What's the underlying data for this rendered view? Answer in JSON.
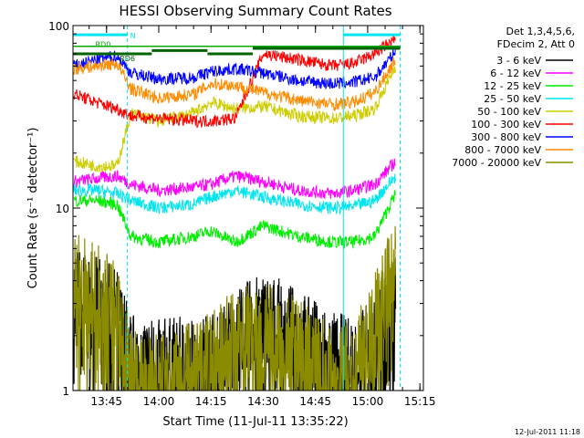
{
  "chart_data": {
    "type": "line",
    "title": "HESSI Observing Summary Count Rates",
    "xlabel": "Start Time (11-Jul-11 13:35:22)",
    "ylabel": "Count Rate (s⁻¹ detector⁻¹)",
    "yscale": "log",
    "ylim": [
      1,
      100
    ],
    "xlim": [
      "13:35:22",
      "15:16"
    ],
    "x_ticks": [
      "13:45",
      "14:00",
      "14:15",
      "14:30",
      "14:45",
      "15:00",
      "15:15"
    ],
    "y_ticks": [
      "1",
      "10",
      "100"
    ],
    "legend_header": [
      "Det 1,3,4,5,6,",
      "FDecim 2, Att 0"
    ],
    "legend_placement": "right",
    "timestamp": "12-Jul-2011 11:18",
    "flags": [
      {
        "name": "N",
        "color": "#00e5ee",
        "value": 89
      },
      {
        "name": "RD0",
        "color": "#00aa00",
        "value": 77
      },
      {
        "name": "RD6",
        "color": "#006400",
        "value": 70
      }
    ],
    "vertical_lines": [
      {
        "time": "13:35:22",
        "style": "solid",
        "color": "#00e5ee"
      },
      {
        "time": "13:51:00",
        "style": "dashed",
        "color": "#00e5ee"
      },
      {
        "time": "14:53:00",
        "style": "solid",
        "color": "#00e5ee"
      },
      {
        "time": "15:09:20",
        "style": "dashed",
        "color": "#00e5ee"
      }
    ],
    "series": [
      {
        "name": "3 - 6 keV",
        "color": "#000000",
        "x": [
          "13:36",
          "13:42",
          "13:48",
          "13:52",
          "14:00",
          "14:10",
          "14:15",
          "14:22",
          "14:30",
          "14:40",
          "14:50",
          "14:56",
          "15:02",
          "15:08"
        ],
        "values": [
          3.5,
          3.0,
          2.6,
          1.5,
          1.4,
          1.4,
          1.5,
          2.0,
          2.5,
          2.0,
          1.5,
          1.4,
          1.8,
          4.0
        ]
      },
      {
        "name": "6 - 12 keV",
        "color": "#ff00ff",
        "x": [
          "13:36",
          "13:42",
          "13:48",
          "13:52",
          "14:00",
          "14:10",
          "14:15",
          "14:22",
          "14:30",
          "14:40",
          "14:50",
          "14:56",
          "15:02",
          "15:08"
        ],
        "values": [
          14,
          14.5,
          15,
          13.5,
          12.5,
          13,
          13.5,
          15,
          14,
          12.5,
          12,
          12.5,
          13.5,
          18
        ]
      },
      {
        "name": "12 - 25 keV",
        "color": "#00ee00",
        "x": [
          "13:36",
          "13:42",
          "13:48",
          "13:52",
          "14:00",
          "14:10",
          "14:15",
          "14:22",
          "14:30",
          "14:40",
          "14:50",
          "14:56",
          "15:02",
          "15:08"
        ],
        "values": [
          11,
          11,
          10.5,
          7,
          6.5,
          7,
          7.5,
          6.5,
          8,
          7,
          6.5,
          6.5,
          7,
          12
        ]
      },
      {
        "name": "25 - 50 keV",
        "color": "#00e5ee",
        "x": [
          "13:36",
          "13:42",
          "13:48",
          "13:52",
          "14:00",
          "14:10",
          "14:15",
          "14:22",
          "14:30",
          "14:40",
          "14:50",
          "14:56",
          "15:02",
          "15:08"
        ],
        "values": [
          12.5,
          12.5,
          12,
          11,
          10,
          10.5,
          11.5,
          12.5,
          11.5,
          10.5,
          10,
          10.2,
          11,
          15
        ]
      },
      {
        "name": "50 - 100 keV",
        "color": "#cdcd00",
        "x": [
          "13:36",
          "13:42",
          "13:48",
          "13:52",
          "14:00",
          "14:10",
          "14:15",
          "14:22",
          "14:30",
          "14:40",
          "14:50",
          "14:56",
          "15:02",
          "15:08"
        ],
        "values": [
          18,
          17,
          17,
          33,
          30,
          33,
          38,
          35,
          36,
          32,
          31,
          32,
          35,
          60
        ]
      },
      {
        "name": "100 - 300 keV",
        "color": "#ff0000",
        "x": [
          "13:36",
          "13:42",
          "13:48",
          "13:52",
          "14:00",
          "14:10",
          "14:15",
          "14:22",
          "14:30",
          "14:40",
          "14:50",
          "14:56",
          "15:02",
          "15:08"
        ],
        "values": [
          42,
          38,
          35,
          32,
          31,
          30,
          30,
          31,
          70,
          65,
          60,
          62,
          70,
          85
        ]
      },
      {
        "name": "300 - 800 keV",
        "color": "#0000ff",
        "x": [
          "13:36",
          "13:42",
          "13:48",
          "13:52",
          "14:00",
          "14:10",
          "14:15",
          "14:22",
          "14:30",
          "14:40",
          "14:50",
          "14:56",
          "15:02",
          "15:08"
        ],
        "values": [
          60,
          65,
          68,
          55,
          51,
          52,
          56,
          58,
          55,
          50,
          48,
          49,
          52,
          72
        ]
      },
      {
        "name": "800 - 7000 keV",
        "color": "#ff8c00",
        "x": [
          "13:36",
          "13:42",
          "13:48",
          "13:52",
          "14:00",
          "14:10",
          "14:15",
          "14:22",
          "14:30",
          "14:40",
          "14:50",
          "14:56",
          "15:02",
          "15:08"
        ],
        "values": [
          58,
          60,
          62,
          45,
          40,
          42,
          48,
          47,
          43,
          39,
          37,
          38,
          43,
          65
        ]
      },
      {
        "name": "7000 - 20000 keV",
        "color": "#8b8b00",
        "x": [
          "13:36",
          "13:42",
          "13:48",
          "13:52",
          "14:00",
          "14:10",
          "14:15",
          "14:22",
          "14:30",
          "14:40",
          "14:50",
          "14:56",
          "15:02",
          "15:08"
        ],
        "values": [
          4.0,
          3.5,
          3.0,
          1.3,
          1.2,
          1.3,
          1.5,
          2.0,
          2.2,
          1.8,
          1.3,
          1.3,
          2.5,
          5.0
        ]
      }
    ]
  }
}
